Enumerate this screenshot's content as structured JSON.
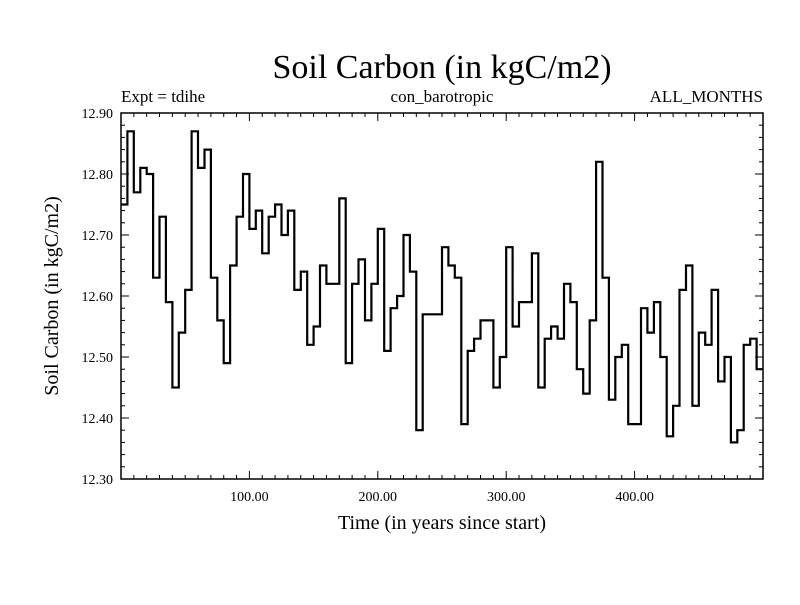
{
  "chart_data": {
    "type": "line",
    "style": "step",
    "title": "Soil Carbon (in kgC/m2)",
    "subtitle_left": "Expt = tdihe",
    "subtitle_center": "con_barotropic",
    "subtitle_right": "ALL_MONTHS",
    "xlabel": "Time (in years since start)",
    "ylabel": "Soil Carbon (in kgC/m2)",
    "xlim": [
      0,
      500
    ],
    "ylim": [
      12.3,
      12.9
    ],
    "xticks": [
      100,
      200,
      300,
      400
    ],
    "xtick_labels": [
      "100.00",
      "200.00",
      "300.00",
      "400.00"
    ],
    "yticks": [
      12.3,
      12.4,
      12.5,
      12.6,
      12.7,
      12.8,
      12.9
    ],
    "ytick_labels": [
      "12.30",
      "12.40",
      "12.50",
      "12.60",
      "12.70",
      "12.80",
      "12.90"
    ],
    "series": [
      {
        "name": "Soil Carbon",
        "color": "#000000",
        "x": [
          0,
          5,
          10,
          15,
          20,
          25,
          30,
          35,
          40,
          45,
          50,
          55,
          60,
          65,
          70,
          75,
          80,
          85,
          90,
          95,
          100,
          105,
          110,
          115,
          120,
          125,
          130,
          135,
          140,
          145,
          150,
          155,
          160,
          165,
          170,
          175,
          180,
          185,
          190,
          195,
          200,
          205,
          210,
          215,
          220,
          225,
          230,
          235,
          240,
          245,
          250,
          255,
          260,
          265,
          270,
          275,
          280,
          285,
          290,
          295,
          300,
          305,
          310,
          315,
          320,
          325,
          330,
          335,
          340,
          345,
          350,
          355,
          360,
          365,
          370,
          375,
          380,
          385,
          390,
          395,
          400,
          405,
          410,
          415,
          420,
          425,
          430,
          435,
          440,
          445,
          450,
          455,
          460,
          465,
          470,
          475,
          480,
          485,
          490,
          495
        ],
        "values": [
          12.75,
          12.87,
          12.77,
          12.81,
          12.8,
          12.63,
          12.73,
          12.59,
          12.45,
          12.54,
          12.61,
          12.87,
          12.81,
          12.84,
          12.63,
          12.56,
          12.49,
          12.65,
          12.73,
          12.8,
          12.71,
          12.74,
          12.67,
          12.73,
          12.75,
          12.7,
          12.74,
          12.61,
          12.64,
          12.52,
          12.55,
          12.65,
          12.62,
          12.62,
          12.76,
          12.49,
          12.62,
          12.66,
          12.56,
          12.62,
          12.71,
          12.51,
          12.58,
          12.6,
          12.7,
          12.64,
          12.38,
          12.57,
          12.57,
          12.57,
          12.68,
          12.65,
          12.63,
          12.39,
          12.51,
          12.53,
          12.56,
          12.56,
          12.45,
          12.5,
          12.68,
          12.55,
          12.59,
          12.59,
          12.67,
          12.45,
          12.53,
          12.55,
          12.53,
          12.62,
          12.59,
          12.48,
          12.44,
          12.56,
          12.82,
          12.63,
          12.43,
          12.5,
          12.52,
          12.39,
          12.39,
          12.58,
          12.54,
          12.59,
          12.5,
          12.37,
          12.42,
          12.61,
          12.65,
          12.42,
          12.54,
          12.52,
          12.61,
          12.46,
          12.5,
          12.36,
          12.38,
          12.52,
          12.53,
          12.48
        ]
      }
    ]
  }
}
